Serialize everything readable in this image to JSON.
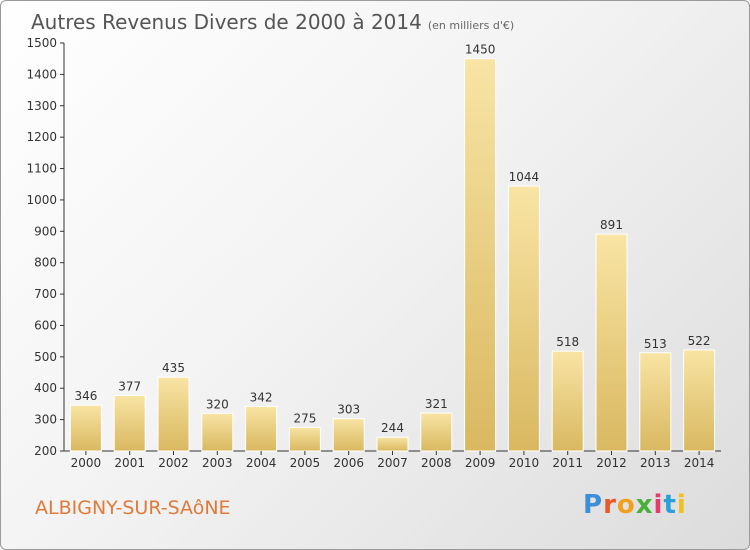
{
  "page": {
    "title": "Autres Revenus Divers de 2000 à 2014",
    "subtitle": "(en milliers d'€)",
    "town": "ALBIGNY-SUR-SAôNE",
    "logo": [
      "P",
      "r",
      "o",
      "x",
      "i",
      "t",
      "i"
    ],
    "logo_colors": [
      "#3a8fd8",
      "#e85a2a",
      "#f0a020",
      "#4ab03a",
      "#e83a6a",
      "#2aa0d8",
      "#f0c020"
    ]
  },
  "colors": {
    "bar_light": "#f8e4a4",
    "bar_dark": "#d9b860",
    "axis": "#333333",
    "grid": "#bbbbbb"
  },
  "chart_data": {
    "type": "bar",
    "title": "Autres Revenus Divers de 2000 à 2014",
    "subtitle": "(en milliers d'€)",
    "xlabel": "",
    "ylabel": "",
    "categories": [
      "2000",
      "2001",
      "2002",
      "2003",
      "2004",
      "2005",
      "2006",
      "2007",
      "2008",
      "2009",
      "2010",
      "2011",
      "2012",
      "2013",
      "2014"
    ],
    "values": [
      346,
      377,
      435,
      320,
      342,
      275,
      303,
      244,
      321,
      1450,
      1044,
      518,
      891,
      513,
      522
    ],
    "ylim": [
      200,
      1500
    ],
    "yticks": [
      "200",
      "300",
      "400",
      "500",
      "600",
      "700",
      "800",
      "900",
      "1000",
      "1100",
      "1200",
      "1300",
      "1400",
      "1500"
    ],
    "grid": false,
    "legend": "none"
  }
}
